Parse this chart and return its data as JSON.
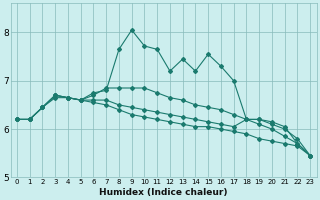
{
  "xlabel": "Humidex (Indice chaleur)",
  "ylabel": "",
  "bg_color": "#cceeee",
  "grid_color": "#88bbbb",
  "line_color": "#1a7a6e",
  "xlim": [
    -0.5,
    23.5
  ],
  "ylim": [
    5,
    8.6
  ],
  "yticks": [
    5,
    6,
    7,
    8
  ],
  "xticks": [
    0,
    1,
    2,
    3,
    4,
    5,
    6,
    7,
    8,
    9,
    10,
    11,
    12,
    13,
    14,
    15,
    16,
    17,
    18,
    19,
    20,
    21,
    22,
    23
  ],
  "series": [
    [
      6.2,
      6.2,
      6.45,
      6.7,
      6.65,
      6.6,
      6.75,
      6.8,
      7.65,
      8.05,
      7.72,
      7.65,
      7.2,
      7.45,
      7.2,
      7.55,
      7.3,
      7.0,
      6.2,
      6.2,
      6.15,
      6.05,
      5.7,
      5.45
    ],
    [
      6.2,
      6.2,
      6.45,
      6.7,
      6.65,
      6.6,
      6.7,
      6.85,
      6.85,
      6.85,
      6.85,
      6.75,
      6.65,
      6.6,
      6.5,
      6.45,
      6.4,
      6.3,
      6.2,
      6.1,
      6.0,
      5.85,
      5.7,
      5.45
    ],
    [
      6.2,
      6.2,
      6.45,
      6.7,
      6.65,
      6.6,
      6.6,
      6.6,
      6.5,
      6.45,
      6.4,
      6.35,
      6.3,
      6.25,
      6.2,
      6.15,
      6.1,
      6.05,
      6.2,
      6.2,
      6.1,
      6.0,
      5.8,
      5.45
    ],
    [
      6.2,
      6.2,
      6.45,
      6.65,
      6.65,
      6.6,
      6.55,
      6.5,
      6.4,
      6.3,
      6.25,
      6.2,
      6.15,
      6.1,
      6.05,
      6.05,
      6.0,
      5.95,
      5.9,
      5.8,
      5.75,
      5.7,
      5.65,
      5.45
    ]
  ]
}
